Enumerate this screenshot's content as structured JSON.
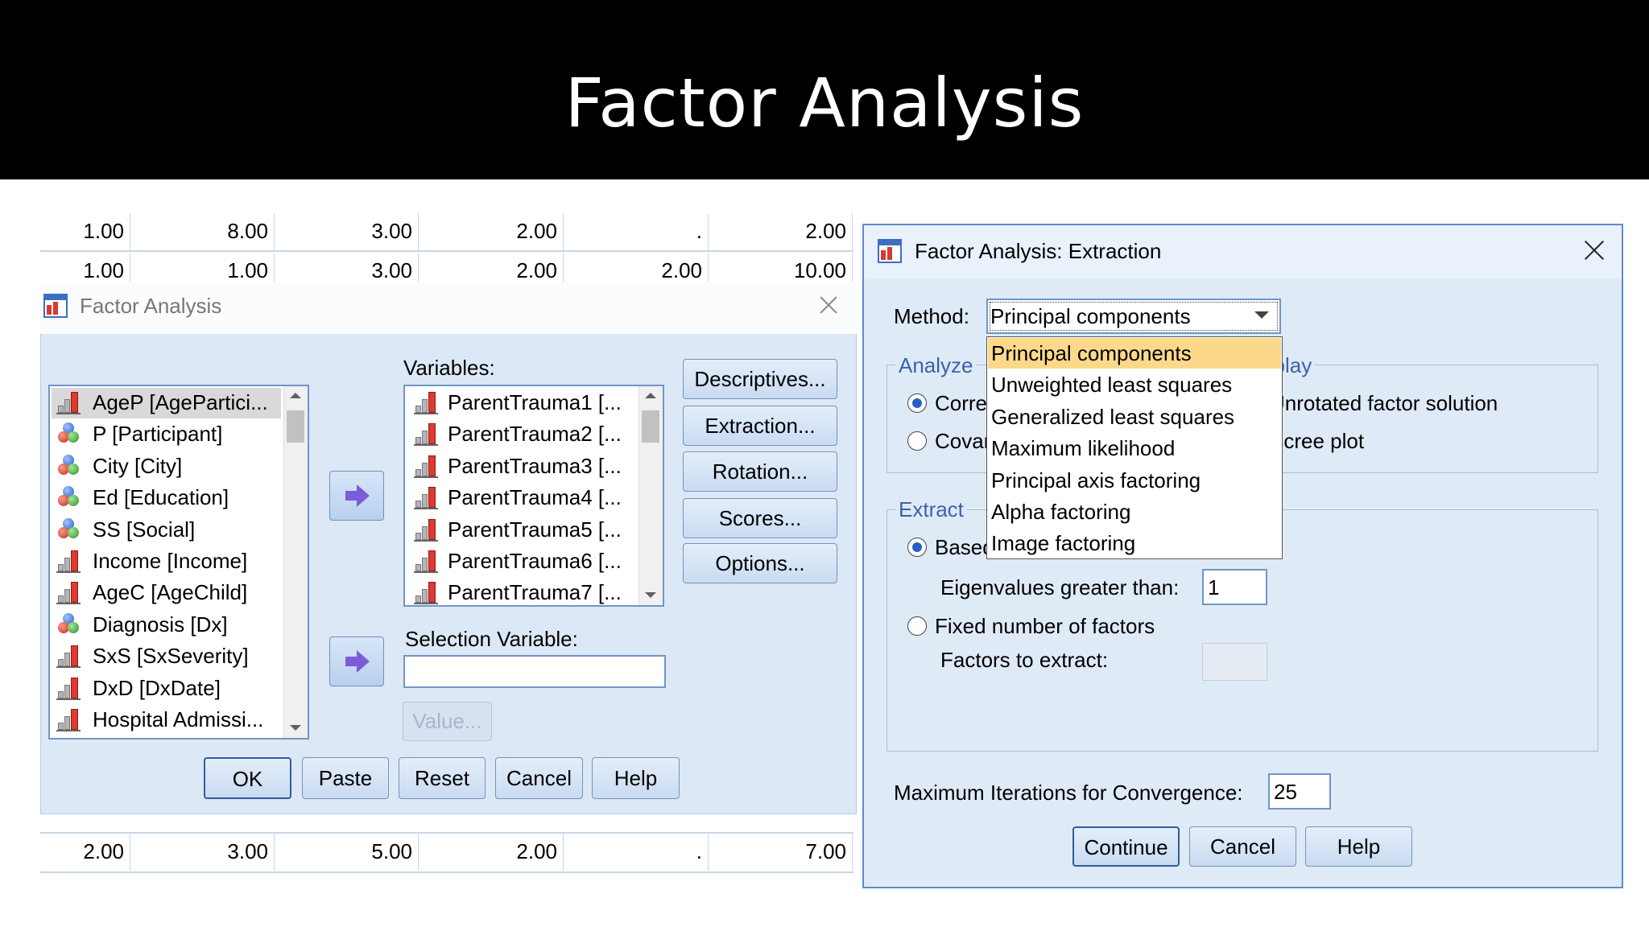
{
  "header": {
    "title": "Factor Analysis"
  },
  "spreadsheet": {
    "rows": [
      [
        "1.00",
        "8.00",
        "3.00",
        "2.00",
        ".",
        "2.00"
      ],
      [
        "1.00",
        "1.00",
        "3.00",
        "2.00",
        "2.00",
        "10.00"
      ],
      [
        "2.00",
        "3.00",
        "5.00",
        "2.00",
        ".",
        "7.00"
      ]
    ]
  },
  "factor_dialog": {
    "title": "Factor Analysis",
    "source_variables": [
      "AgeP [AgePartici...",
      "P [Participant]",
      "City [City]",
      "Ed [Education]",
      "SS [Social]",
      "Income [Income]",
      "AgeC [AgeChild]",
      "Diagnosis [Dx]",
      "SxS [SxSeverity]",
      "DxD [DxDate]",
      "Hospital Admissi..."
    ],
    "variables_label": "Variables:",
    "variables": [
      "ParentTrauma1 [...",
      "ParentTrauma2 [...",
      "ParentTrauma3 [...",
      "ParentTrauma4 [...",
      "ParentTrauma5 [...",
      "ParentTrauma6 [...",
      "ParentTrauma7 [..."
    ],
    "selection_label": "Selection Variable:",
    "value_button": "Value...",
    "side_buttons": [
      "Descriptives...",
      "Extraction...",
      "Rotation...",
      "Scores...",
      "Options..."
    ],
    "buttons": [
      "OK",
      "Paste",
      "Reset",
      "Cancel",
      "Help"
    ]
  },
  "extraction_dialog": {
    "title": "Factor Analysis: Extraction",
    "method_label": "Method:",
    "method_selected": "Principal components",
    "method_options": [
      "Principal components",
      "Unweighted least squares",
      "Generalized least squares",
      "Maximum likelihood",
      "Principal axis factoring",
      "Alpha factoring",
      "Image factoring"
    ],
    "analyze": {
      "label": "Analyze",
      "options": [
        "Correlation matrix",
        "Covariance matrix"
      ]
    },
    "display": {
      "label": "Display",
      "options": [
        "Unrotated factor solution",
        "Scree plot"
      ]
    },
    "extract": {
      "label": "Extract",
      "eigen_option": "Based on Eigenvalue",
      "eigen_label": "Eigenvalues greater than:",
      "eigen_value": "1",
      "fixed_option": "Fixed number of factors",
      "factors_label": "Factors to extract:"
    },
    "iterations_label": "Maximum Iterations for Convergence:",
    "iterations_value": "25",
    "buttons": [
      "Continue",
      "Cancel",
      "Help"
    ]
  }
}
